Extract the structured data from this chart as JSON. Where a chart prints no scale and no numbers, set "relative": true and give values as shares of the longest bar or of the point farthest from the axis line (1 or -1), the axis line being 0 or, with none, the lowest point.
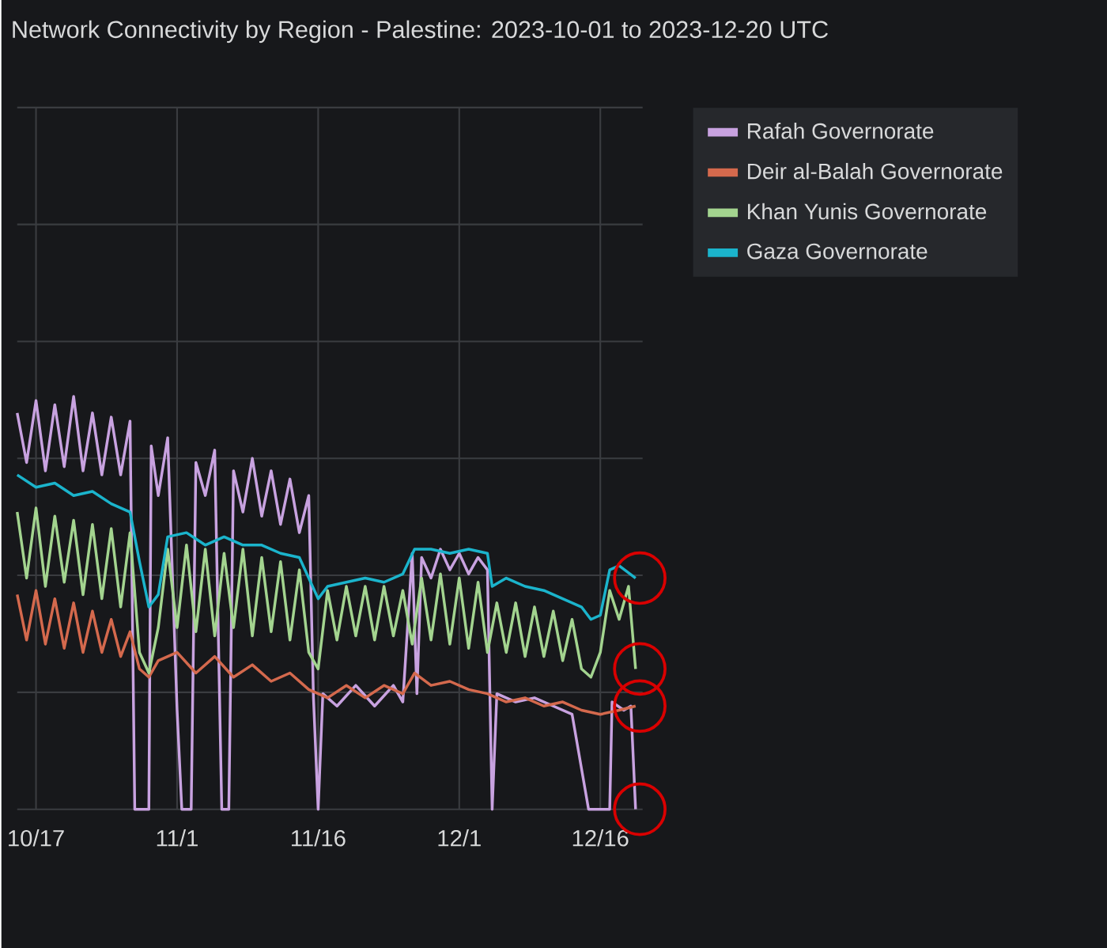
{
  "chart_data": {
    "type": "line",
    "title": "Network Connectivity by Region - Palestine: 2023-10-01 to 2023-12-20 UTC",
    "relative": true,
    "grid": true,
    "legend": "right",
    "marker": "none",
    "line_style": "solid",
    "xlim": [
      "2023-10-15",
      "2023-12-20T12:00"
    ],
    "xticks": [
      {
        "value": "2023-10-17",
        "label": "10/17"
      },
      {
        "value": "2023-11-01",
        "label": "11/1"
      },
      {
        "value": "2023-11-16",
        "label": "11/16"
      },
      {
        "value": "2023-12-01",
        "label": "12/1"
      },
      {
        "value": "2023-12-16",
        "label": "12/16"
      }
    ],
    "series": [
      {
        "name": "Rafah Governorate",
        "color": "#c8a2e0",
        "x": [
          "2023-10-15",
          "2023-10-16",
          "2023-10-17",
          "2023-10-18",
          "2023-10-19",
          "2023-10-20",
          "2023-10-21",
          "2023-10-22",
          "2023-10-23",
          "2023-10-24",
          "2023-10-25",
          "2023-10-26",
          "2023-10-27",
          "2023-10-27T12:00",
          "2023-10-29",
          "2023-10-29T06:00",
          "2023-10-30",
          "2023-10-31",
          "2023-11-01",
          "2023-11-01T12:00",
          "2023-11-02T12:00",
          "2023-11-03",
          "2023-11-04",
          "2023-11-05",
          "2023-11-05T18:00",
          "2023-11-06T12:00",
          "2023-11-07",
          "2023-11-08",
          "2023-11-09",
          "2023-11-10",
          "2023-11-11",
          "2023-11-12",
          "2023-11-13",
          "2023-11-14",
          "2023-11-15",
          "2023-11-15T12:00",
          "2023-11-16",
          "2023-11-16T12:00",
          "2023-11-18",
          "2023-11-20",
          "2023-11-22",
          "2023-11-24",
          "2023-11-25",
          "2023-11-26",
          "2023-11-26T12:00",
          "2023-11-27",
          "2023-11-28",
          "2023-11-29",
          "2023-11-30",
          "2023-12-01",
          "2023-12-02",
          "2023-12-03",
          "2023-12-04",
          "2023-12-04T12:00",
          "2023-12-05",
          "2023-12-07",
          "2023-12-09",
          "2023-12-11",
          "2023-12-13",
          "2023-12-14T18:00",
          "2023-12-17",
          "2023-12-17T06:00",
          "2023-12-18T12:00",
          "2023-12-19T06:00",
          "2023-12-19T18:00"
        ],
        "values": [
          0.96,
          0.84,
          0.99,
          0.82,
          0.98,
          0.83,
          1.0,
          0.82,
          0.96,
          0.81,
          0.95,
          0.81,
          0.94,
          0,
          0,
          0.88,
          0.76,
          0.9,
          0.24,
          0,
          0,
          0.84,
          0.76,
          0.87,
          0,
          0,
          0.82,
          0.72,
          0.85,
          0.71,
          0.82,
          0.69,
          0.8,
          0.67,
          0.76,
          0.27,
          0,
          0.28,
          0.25,
          0.3,
          0.25,
          0.3,
          0.26,
          0.62,
          0.28,
          0.61,
          0.56,
          0.63,
          0.58,
          0.62,
          0.57,
          0.61,
          0.58,
          0,
          0.28,
          0.26,
          0.27,
          0.25,
          0.23,
          0,
          0,
          0.26,
          0.24,
          0.25,
          0
        ]
      },
      {
        "name": "Deir al-Balah Governorate",
        "color": "#d4694d",
        "x": [
          "2023-10-15",
          "2023-10-16",
          "2023-10-17",
          "2023-10-18",
          "2023-10-19",
          "2023-10-20",
          "2023-10-21",
          "2023-10-22",
          "2023-10-23",
          "2023-10-24",
          "2023-10-25",
          "2023-10-26",
          "2023-10-27",
          "2023-10-28",
          "2023-10-29",
          "2023-10-30",
          "2023-11-01",
          "2023-11-03",
          "2023-11-05",
          "2023-11-07",
          "2023-11-09",
          "2023-11-11",
          "2023-11-13",
          "2023-11-15",
          "2023-11-17",
          "2023-11-19",
          "2023-11-21",
          "2023-11-23",
          "2023-11-25",
          "2023-11-26T06:00",
          "2023-11-28",
          "2023-11-30",
          "2023-12-02",
          "2023-12-04",
          "2023-12-06",
          "2023-12-08",
          "2023-12-10",
          "2023-12-12",
          "2023-12-14",
          "2023-12-16",
          "2023-12-18",
          "2023-12-19T18:00"
        ],
        "values": [
          0.52,
          0.41,
          0.53,
          0.4,
          0.51,
          0.39,
          0.5,
          0.38,
          0.48,
          0.38,
          0.46,
          0.37,
          0.43,
          0.34,
          0.32,
          0.36,
          0.38,
          0.33,
          0.37,
          0.32,
          0.35,
          0.31,
          0.33,
          0.29,
          0.27,
          0.3,
          0.27,
          0.3,
          0.28,
          0.33,
          0.3,
          0.31,
          0.29,
          0.28,
          0.26,
          0.27,
          0.25,
          0.26,
          0.24,
          0.23,
          0.24,
          0.25
        ]
      },
      {
        "name": "Khan Yunis Governorate",
        "color": "#a3d48f",
        "x": [
          "2023-10-15",
          "2023-10-16",
          "2023-10-17",
          "2023-10-18",
          "2023-10-19",
          "2023-10-20",
          "2023-10-21",
          "2023-10-22",
          "2023-10-23",
          "2023-10-24",
          "2023-10-25",
          "2023-10-26",
          "2023-10-27",
          "2023-10-28",
          "2023-10-29",
          "2023-10-30",
          "2023-10-31",
          "2023-11-01",
          "2023-11-02",
          "2023-11-03",
          "2023-11-04",
          "2023-11-05",
          "2023-11-06",
          "2023-11-07",
          "2023-11-08",
          "2023-11-09",
          "2023-11-10",
          "2023-11-11",
          "2023-11-12",
          "2023-11-13",
          "2023-11-14",
          "2023-11-15",
          "2023-11-16",
          "2023-11-17",
          "2023-11-18",
          "2023-11-19",
          "2023-11-20",
          "2023-11-21",
          "2023-11-22",
          "2023-11-23",
          "2023-11-24",
          "2023-11-25",
          "2023-11-26",
          "2023-11-27",
          "2023-11-28",
          "2023-11-29",
          "2023-11-30",
          "2023-12-01",
          "2023-12-02",
          "2023-12-03",
          "2023-12-04",
          "2023-12-05",
          "2023-12-06",
          "2023-12-07",
          "2023-12-08",
          "2023-12-09",
          "2023-12-10",
          "2023-12-11",
          "2023-12-12",
          "2023-12-13",
          "2023-12-14",
          "2023-12-15",
          "2023-12-16",
          "2023-12-17",
          "2023-12-18",
          "2023-12-19",
          "2023-12-19T18:00"
        ],
        "values": [
          0.72,
          0.56,
          0.73,
          0.54,
          0.71,
          0.55,
          0.7,
          0.52,
          0.69,
          0.51,
          0.68,
          0.49,
          0.67,
          0.38,
          0.33,
          0.44,
          0.63,
          0.44,
          0.64,
          0.43,
          0.63,
          0.42,
          0.62,
          0.44,
          0.63,
          0.42,
          0.61,
          0.43,
          0.6,
          0.41,
          0.58,
          0.38,
          0.34,
          0.53,
          0.41,
          0.54,
          0.42,
          0.54,
          0.41,
          0.54,
          0.42,
          0.53,
          0.4,
          0.56,
          0.41,
          0.57,
          0.4,
          0.56,
          0.39,
          0.55,
          0.38,
          0.5,
          0.38,
          0.5,
          0.37,
          0.49,
          0.37,
          0.48,
          0.36,
          0.46,
          0.34,
          0.32,
          0.38,
          0.53,
          0.46,
          0.54,
          0.34
        ]
      },
      {
        "name": "Gaza Governorate",
        "color": "#1bb4cc",
        "x": [
          "2023-10-15",
          "2023-10-17",
          "2023-10-19",
          "2023-10-21",
          "2023-10-23",
          "2023-10-25",
          "2023-10-27",
          "2023-10-28",
          "2023-10-29",
          "2023-10-30",
          "2023-10-31",
          "2023-11-02",
          "2023-11-04",
          "2023-11-06",
          "2023-11-08",
          "2023-11-10",
          "2023-11-12",
          "2023-11-14",
          "2023-11-15",
          "2023-11-16",
          "2023-11-17",
          "2023-11-19",
          "2023-11-21",
          "2023-11-23",
          "2023-11-25",
          "2023-11-26T06:00",
          "2023-11-28",
          "2023-11-30",
          "2023-12-02",
          "2023-12-04",
          "2023-12-04T12:00",
          "2023-12-06",
          "2023-12-08",
          "2023-12-10",
          "2023-12-12",
          "2023-12-14",
          "2023-12-15",
          "2023-12-16",
          "2023-12-17",
          "2023-12-18",
          "2023-12-19T18:00"
        ],
        "values": [
          0.81,
          0.78,
          0.79,
          0.76,
          0.77,
          0.74,
          0.72,
          0.6,
          0.49,
          0.52,
          0.66,
          0.67,
          0.64,
          0.66,
          0.64,
          0.64,
          0.62,
          0.61,
          0.56,
          0.51,
          0.54,
          0.55,
          0.56,
          0.55,
          0.57,
          0.63,
          0.63,
          0.62,
          0.63,
          0.62,
          0.54,
          0.56,
          0.54,
          0.53,
          0.51,
          0.49,
          0.46,
          0.47,
          0.58,
          0.59,
          0.56
        ]
      }
    ]
  }
}
